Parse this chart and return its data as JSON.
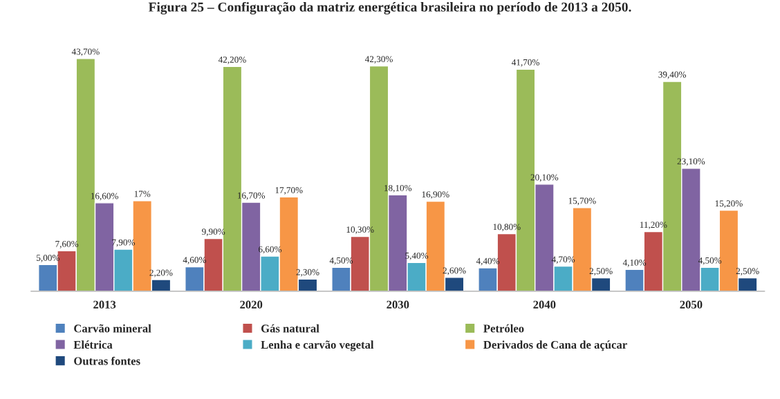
{
  "chart_data": {
    "type": "bar",
    "title": "Figura 25 – Configuração da matriz energética brasileira no período de 2013 a 2050.",
    "categories": [
      "2013",
      "2020",
      "2030",
      "2040",
      "2050"
    ],
    "series": [
      {
        "name": "Carvão mineral",
        "color": "#4f81bd",
        "values": [
          5.0,
          4.6,
          4.5,
          4.4,
          4.1
        ],
        "value_labels": [
          "5,00%",
          "4,60%",
          "4,50%",
          "4,40%",
          "4,10%"
        ]
      },
      {
        "name": "Gás natural",
        "color": "#c0504d",
        "values": [
          7.6,
          9.9,
          10.3,
          10.8,
          11.2
        ],
        "value_labels": [
          "7,60%",
          "9,90%",
          "10,30%",
          "10,80%",
          "11,20%"
        ]
      },
      {
        "name": "Petróleo",
        "color": "#9bbb59",
        "values": [
          43.7,
          42.2,
          42.3,
          41.7,
          39.4
        ],
        "value_labels": [
          "43,70%",
          "42,20%",
          "42,30%",
          "41,70%",
          "39,40%"
        ]
      },
      {
        "name": "Elétrica",
        "color": "#8064a2",
        "values": [
          16.6,
          16.7,
          18.1,
          20.1,
          23.1
        ],
        "value_labels": [
          "16,60%",
          "16,70%",
          "18,10%",
          "20,10%",
          "23,10%"
        ]
      },
      {
        "name": "Lenha e carvão vegetal",
        "color": "#4bacc6",
        "values": [
          7.9,
          6.6,
          5.4,
          4.7,
          4.5
        ],
        "value_labels": [
          "7,90%",
          "6,60%",
          "5,40%",
          "4,70%",
          "4,50%"
        ]
      },
      {
        "name": "Derivados de Cana de açúcar",
        "color": "#f79646",
        "values": [
          17,
          17.7,
          16.9,
          15.7,
          15.2
        ],
        "value_labels": [
          "17%",
          "17,70%",
          "16,90%",
          "15,70%",
          "15,20%"
        ]
      },
      {
        "name": "Outras fontes",
        "color": "#1f497d",
        "values": [
          2.2,
          2.3,
          2.6,
          2.5,
          2.5
        ],
        "value_labels": [
          "2,20%",
          "2,30%",
          "2,60%",
          "2,50%",
          "2,50%"
        ]
      }
    ],
    "legend": "bottom",
    "grid": false
  }
}
